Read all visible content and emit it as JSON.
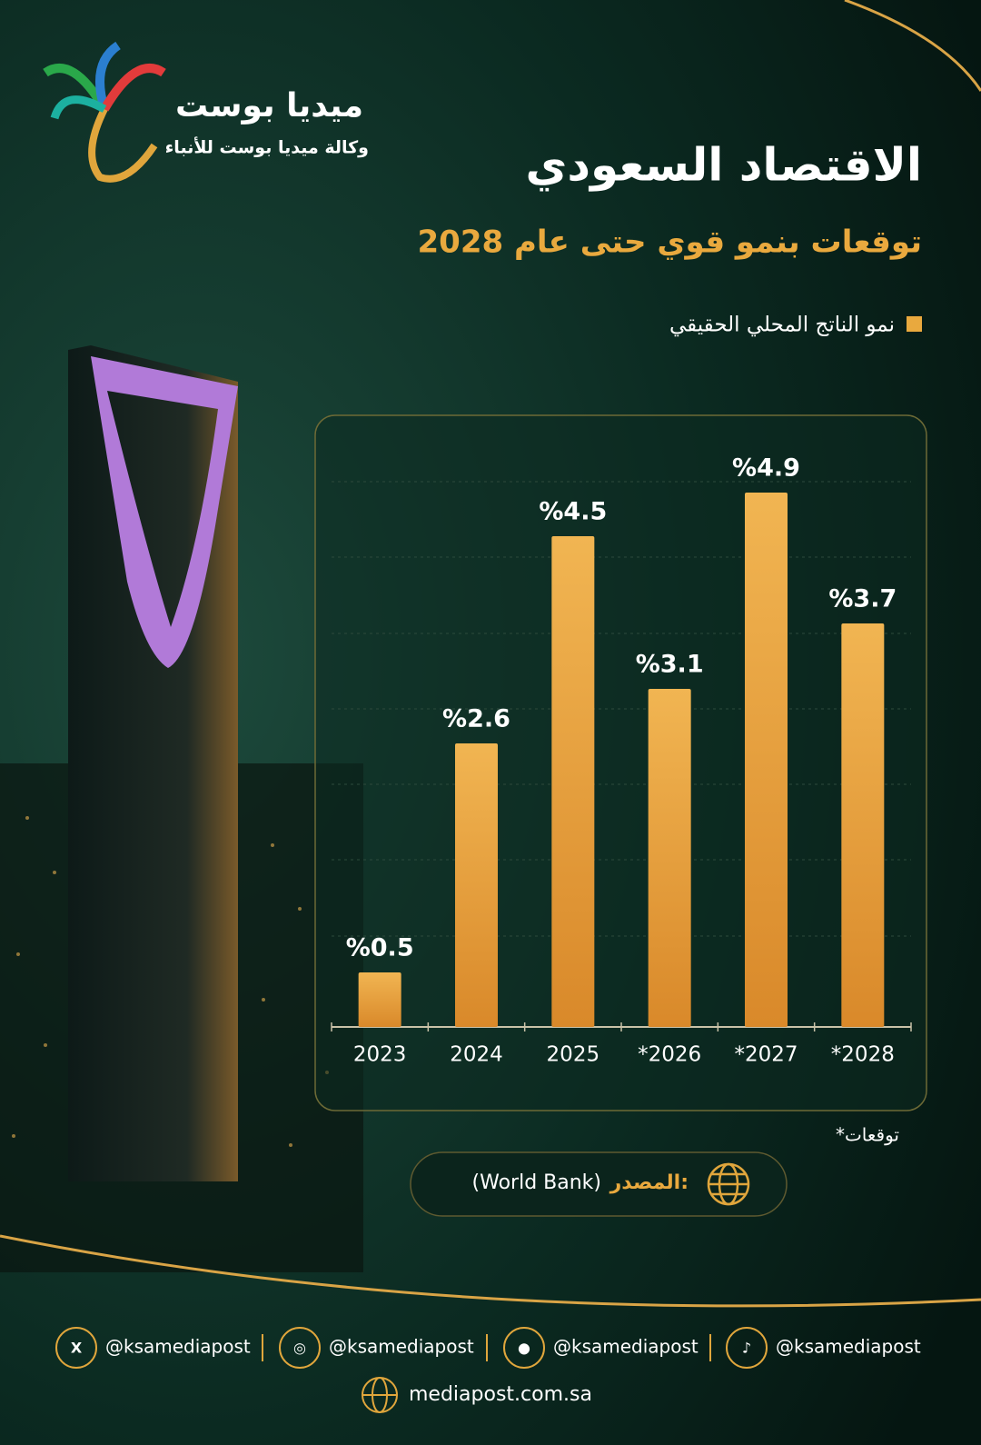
{
  "header": {
    "brand": "ميديا بوست",
    "tagline": "وكالة ميديا بوست للأنباء"
  },
  "chart_data": {
    "type": "bar",
    "title": "الاقتصاد السعودي",
    "subtitle": "توقعات بنمو قوي حتى عام 2028",
    "legend": "نمو الناتج المحلي الحقيقي",
    "color": "#e9a93e",
    "categories": [
      "2023",
      "2024",
      "2025",
      "*2026",
      "*2027",
      "*2028"
    ],
    "values": [
      0.5,
      2.6,
      4.5,
      3.1,
      4.9,
      3.7
    ],
    "value_labels": [
      "%0.5",
      "%2.6",
      "%4.5",
      "%3.1",
      "%4.9",
      "%3.7"
    ],
    "ylim": [
      0,
      5.3
    ],
    "note": "*توقعات",
    "source_label": "المصدر:",
    "source": "(World Bank)"
  },
  "footer": {
    "handles": [
      "@ksamediapost",
      "@ksamediapost",
      "@ksamediapost",
      "@ksamediapost"
    ],
    "website": "mediapost.com.sa"
  }
}
